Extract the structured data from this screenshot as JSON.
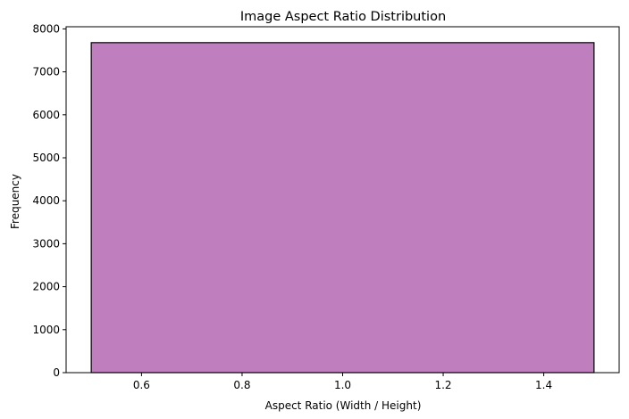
{
  "chart_data": {
    "type": "bar",
    "title": "Image Aspect Ratio Distribution",
    "xlabel": "Aspect Ratio (Width / Height)",
    "ylabel": "Frequency",
    "xlim": [
      0.45,
      1.55
    ],
    "ylim": [
      0,
      8050
    ],
    "xticks": [
      0.6,
      0.8,
      1.0,
      1.2,
      1.4
    ],
    "xtick_labels": [
      "0.6",
      "0.8",
      "1.0",
      "1.2",
      "1.4"
    ],
    "yticks": [
      0,
      1000,
      2000,
      3000,
      4000,
      5000,
      6000,
      7000,
      8000
    ],
    "ytick_labels": [
      "0",
      "1000",
      "2000",
      "3000",
      "4000",
      "5000",
      "6000",
      "7000",
      "8000"
    ],
    "bins": [
      {
        "x_start": 0.5,
        "x_end": 1.5,
        "value": 7680
      }
    ],
    "colors": {
      "bar_fill": "#bf7fbf",
      "bar_edge": "#000000"
    },
    "grid": false,
    "legend": "none"
  }
}
